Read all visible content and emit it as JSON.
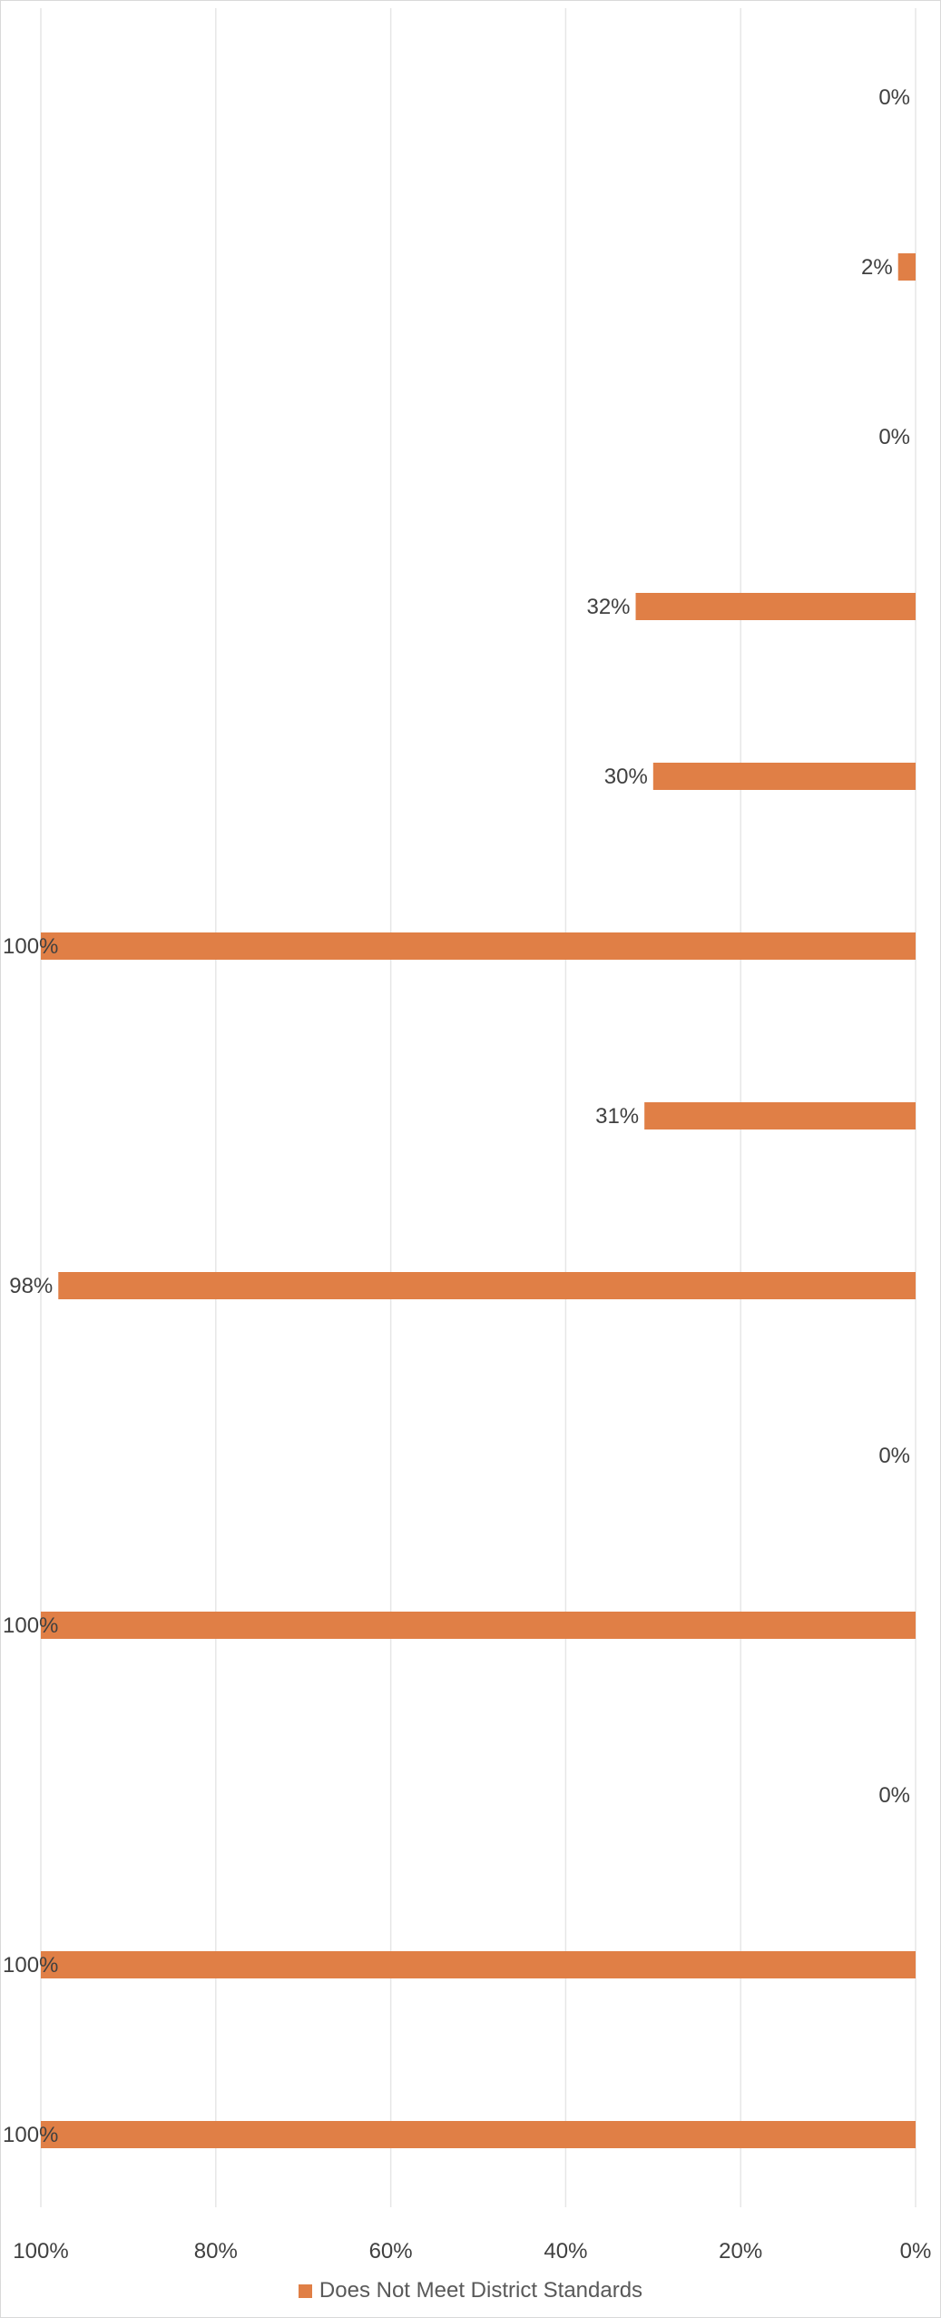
{
  "chart_data": {
    "type": "bar",
    "orientation": "horizontal",
    "x_axis_reversed": true,
    "xlim": [
      0,
      1
    ],
    "tick_values": [
      1,
      0.8,
      0.6,
      0.4,
      0.2,
      0
    ],
    "tick_labels": [
      "100%",
      "80%",
      "60%",
      "40%",
      "20%",
      "0%"
    ],
    "grid": true,
    "legend_position": "bottom",
    "series": [
      {
        "name": "Does Not Meet District Standards",
        "color": "#e07f46",
        "values": [
          0,
          0.02,
          0,
          0.32,
          0.3,
          1,
          0.31,
          0.98,
          0,
          1,
          0,
          1,
          1
        ],
        "labels": [
          "0%",
          "2%",
          "0%",
          "32%",
          "30%",
          "100%",
          "31%",
          "98%",
          "0%",
          "100%",
          "0%",
          "100%",
          "100%"
        ]
      }
    ]
  }
}
